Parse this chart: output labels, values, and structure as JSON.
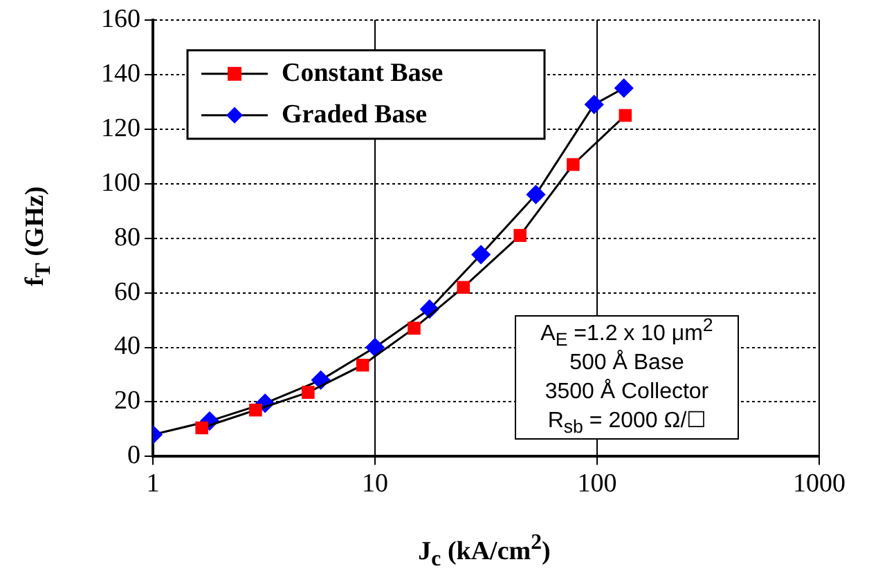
{
  "chart_data": {
    "type": "line",
    "xlabel": "J$_{c}$ (kA/cm$^{2}$)",
    "ylabel": "f$_{T}$ (GHz)",
    "log": "x",
    "xlim": [
      1,
      1000
    ],
    "xticks": [
      1,
      10,
      100,
      1000
    ],
    "ylim": [
      0,
      160
    ],
    "yticks": [
      0,
      20,
      40,
      60,
      80,
      100,
      120,
      140,
      160
    ],
    "grid": true,
    "legend": "top left",
    "line_style": "solid",
    "series": [
      {
        "name": "Constant Base",
        "color": "#ff0000",
        "marker": "square",
        "x": [
          1.66,
          2.9,
          5.0,
          8.8,
          15,
          25,
          45,
          78,
          134
        ],
        "values": [
          10.5,
          17,
          23.5,
          33.5,
          47,
          62,
          81,
          107,
          125
        ]
      },
      {
        "name": "Graded Base",
        "color": "#0000ff",
        "marker": "diamond",
        "x": [
          1,
          1.8,
          3.2,
          5.7,
          10,
          17.6,
          30,
          53,
          97,
          132
        ],
        "values": [
          8,
          13,
          19.5,
          28,
          40,
          54,
          74,
          96,
          129,
          135
        ]
      }
    ],
    "annotations": [
      "A$_{E}$ =1.2 x 10 μm$^{2}$",
      "500 Å Base",
      "3500 Å Collector",
      "R$_{sb}$ = 2000 Ω/☐"
    ]
  }
}
